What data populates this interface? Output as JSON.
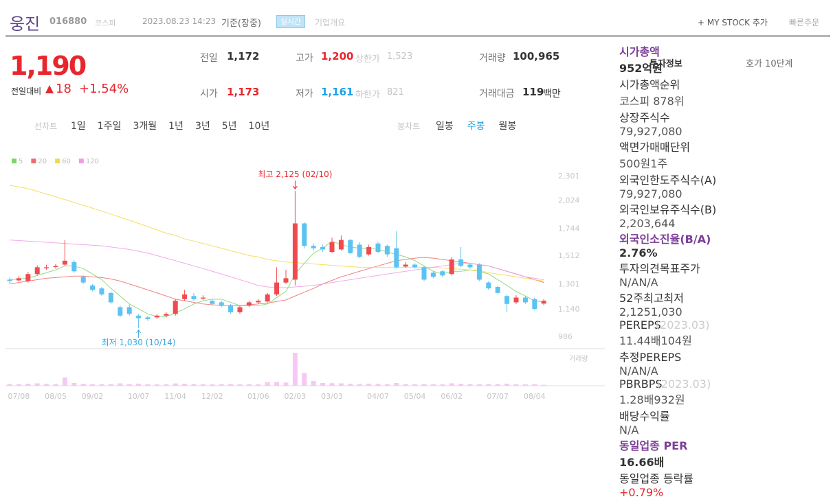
{
  "header": {
    "name": "웅진",
    "code": "016880",
    "market": "코스피",
    "datetime": "2023.08.23 14:23",
    "basis": "기준(장중)",
    "badge": "실시간",
    "company": "기업개요",
    "mystock": "+ MY STOCK 추가",
    "order": "빠른주문"
  },
  "quote": {
    "price": "1,190",
    "change_label": "전일대비",
    "change": "18",
    "change_pct": "+1.54%",
    "prev_label": "전일",
    "prev": "1,172",
    "high_label": "고가",
    "high": "1,200",
    "upper_label": "상한가",
    "upper": "1,523",
    "volume_label": "거래량",
    "volume": "100,965",
    "open_label": "시가",
    "open": "1,173",
    "low_label": "저가",
    "low": "1,161",
    "lower_label": "하한가",
    "lower": "821",
    "amount_label": "거래대금",
    "amount": "119",
    "amount_unit": "백만"
  },
  "periods": {
    "line_label": "선차트",
    "line": [
      "1일",
      "1주일",
      "3개월",
      "1년",
      "3년",
      "5년",
      "10년"
    ],
    "candle_label": "봉차트",
    "candle": [
      "일봉",
      "주봉",
      "월봉"
    ],
    "active": "주봉"
  },
  "chart_data": {
    "type": "candlestick",
    "log": true,
    "grid": false,
    "ylim": [
      951,
      2440
    ],
    "yticks": [
      {
        "value": 2301,
        "label": "2,301"
      },
      {
        "value": 2024,
        "label": "2,024"
      },
      {
        "value": 1744,
        "label": "1,744"
      },
      {
        "value": 1512,
        "label": "1,512"
      },
      {
        "value": 1301,
        "label": "1,301"
      },
      {
        "value": 1140,
        "label": "1,140"
      },
      986
    ],
    "up_color": "#f04a4f",
    "down_color": "#5bc3f2",
    "volume_color": "#f6c8f4",
    "volume_label": "거래량",
    "categories": [
      null,
      "07/08",
      null,
      null,
      null,
      "08/05",
      null,
      null,
      null,
      "09/02",
      null,
      null,
      null,
      null,
      "10/07",
      null,
      null,
      null,
      "11/04",
      null,
      null,
      null,
      "12/02",
      null,
      null,
      null,
      null,
      "01/06",
      null,
      null,
      null,
      "02/03",
      null,
      null,
      null,
      "03/03",
      null,
      null,
      null,
      null,
      "04/07",
      null,
      null,
      null,
      "05/04",
      null,
      null,
      null,
      "06/02",
      null,
      null,
      null,
      null,
      "07/07",
      null,
      null,
      null,
      "08/04",
      null
    ],
    "open": [
      1330,
      1325,
      1320,
      1370,
      1415,
      1425,
      1440,
      1460,
      1350,
      1290,
      1270,
      1240,
      1150,
      1150,
      1100,
      1090,
      1090,
      1100,
      1110,
      1200,
      1220,
      1205,
      1190,
      1180,
      1160,
      1120,
      1160,
      1180,
      1185,
      1230,
      1310,
      1330,
      1790,
      1590,
      1580,
      1540,
      1560,
      1640,
      1600,
      1520,
      1610,
      1590,
      1570,
      1425,
      1440,
      1420,
      1380,
      1390,
      1370,
      1480,
      1440,
      1440,
      1310,
      1280,
      1220,
      1180,
      1210,
      1200,
      1172
    ],
    "high": [
      1345,
      1355,
      1385,
      1435,
      1440,
      1445,
      1640,
      1475,
      1360,
      1300,
      1280,
      1250,
      1160,
      1165,
      1110,
      1100,
      1110,
      1120,
      1200,
      1260,
      1240,
      1225,
      1200,
      1190,
      1170,
      1160,
      1190,
      1200,
      1240,
      1420,
      1400,
      2125,
      1800,
      1610,
      1600,
      1660,
      1680,
      1650,
      1620,
      1600,
      1625,
      1600,
      1720,
      1460,
      1450,
      1430,
      1390,
      1400,
      1500,
      1580,
      1450,
      1450,
      1320,
      1290,
      1230,
      1225,
      1220,
      1210,
      1200
    ],
    "low": [
      1305,
      1315,
      1310,
      1360,
      1400,
      1410,
      1430,
      1380,
      1300,
      1250,
      1220,
      1170,
      1090,
      1100,
      1030,
      1070,
      1080,
      1090,
      1100,
      1190,
      1190,
      1195,
      1160,
      1150,
      1110,
      1110,
      1150,
      1170,
      1180,
      1220,
      1300,
      1290,
      1570,
      1550,
      1540,
      1530,
      1550,
      1520,
      1490,
      1510,
      1530,
      1500,
      1410,
      1415,
      1410,
      1320,
      1340,
      1350,
      1360,
      1420,
      1410,
      1320,
      1260,
      1230,
      1120,
      1170,
      1170,
      1130,
      1161
    ],
    "close": [
      1320,
      1340,
      1370,
      1420,
      1420,
      1430,
      1470,
      1390,
      1310,
      1260,
      1230,
      1180,
      1100,
      1110,
      1085,
      1080,
      1100,
      1110,
      1190,
      1230,
      1200,
      1210,
      1170,
      1160,
      1120,
      1150,
      1180,
      1190,
      1230,
      1310,
      1340,
      1790,
      1590,
      1570,
      1560,
      1620,
      1640,
      1530,
      1500,
      1580,
      1540,
      1520,
      1420,
      1440,
      1420,
      1330,
      1350,
      1360,
      1480,
      1430,
      1420,
      1330,
      1270,
      1240,
      1170,
      1210,
      1180,
      1140,
      1190
    ],
    "volume": [
      200000,
      180000,
      220000,
      260000,
      210000,
      190000,
      900000,
      300000,
      220000,
      180000,
      170000,
      200000,
      260000,
      190000,
      230000,
      170000,
      150000,
      160000,
      250000,
      220000,
      180000,
      160000,
      150000,
      170000,
      200000,
      160000,
      170000,
      150000,
      380000,
      420000,
      350000,
      3600000,
      1400000,
      520000,
      300000,
      280000,
      260000,
      220000,
      200000,
      230000,
      210000,
      190000,
      300000,
      180000,
      170000,
      200000,
      160000,
      150000,
      260000,
      220000,
      180000,
      170000,
      200000,
      190000,
      230000,
      160000,
      150000,
      170000,
      100965
    ],
    "series": [
      {
        "name": "5",
        "color": "#7ed36a",
        "values": [
          1330,
          1335,
          1340,
          1360,
          1380,
          1400,
          1430,
          1430,
          1410,
          1370,
          1330,
          1270,
          1220,
          1170,
          1140,
          1110,
          1095,
          1095,
          1115,
          1140,
          1170,
          1190,
          1200,
          1200,
          1180,
          1160,
          1160,
          1160,
          1170,
          1210,
          1250,
          1370,
          1450,
          1530,
          1570,
          1630,
          1600,
          1580,
          1570,
          1570,
          1560,
          1540,
          1520,
          1500,
          1470,
          1430,
          1390,
          1370,
          1390,
          1390,
          1400,
          1390,
          1370,
          1330,
          1290,
          1250,
          1220,
          1190,
          1180
        ]
      },
      {
        "name": "20",
        "color": "#f06b6b",
        "values": [
          1300,
          1310,
          1320,
          1330,
          1340,
          1345,
          1350,
          1355,
          1355,
          1350,
          1345,
          1335,
          1320,
          1300,
          1280,
          1260,
          1240,
          1220,
          1200,
          1190,
          1180,
          1170,
          1165,
          1160,
          1160,
          1160,
          1165,
          1170,
          1175,
          1185,
          1195,
          1220,
          1245,
          1270,
          1300,
          1325,
          1350,
          1370,
          1390,
          1410,
          1430,
          1450,
          1470,
          1480,
          1490,
          1495,
          1490,
          1480,
          1470,
          1460,
          1450,
          1440,
          1430,
          1410,
          1390,
          1370,
          1350,
          1330,
          1310
        ]
      },
      {
        "name": "60",
        "color": "#f5d84a",
        "values": [
          2190,
          2170,
          2150,
          2120,
          2090,
          2060,
          2030,
          2000,
          1970,
          1940,
          1910,
          1880,
          1850,
          1820,
          1790,
          1760,
          1730,
          1700,
          1680,
          1650,
          1630,
          1610,
          1590,
          1570,
          1550,
          1530,
          1510,
          1500,
          1480,
          1470,
          1460,
          1455,
          1450,
          1445,
          1440,
          1435,
          1430,
          1425,
          1420,
          1420,
          1420,
          1420,
          1420,
          1420,
          1420,
          1420,
          1420,
          1415,
          1410,
          1405,
          1400,
          1395,
          1380,
          1370,
          1360,
          1350,
          1340,
          1330,
          1320
        ]
      },
      {
        "name": "120",
        "color": "#f09ae8",
        "values": [
          1640,
          1635,
          1630,
          1625,
          1620,
          1615,
          1610,
          1605,
          1600,
          1595,
          1590,
          1580,
          1570,
          1560,
          1545,
          1530,
          1510,
          1490,
          1470,
          1450,
          1430,
          1410,
          1390,
          1370,
          1350,
          1330,
          1310,
          1290,
          1280,
          1275,
          1275,
          1280,
          1285,
          1290,
          1300,
          1310,
          1320,
          1330,
          1340,
          1350,
          1360,
          1370,
          1380,
          1390,
          1400,
          1410,
          1420,
          1430,
          1440,
          1450,
          1450,
          1440,
          1430,
          1410,
          1390,
          1370,
          1350,
          1340,
          1330
        ]
      }
    ],
    "annotations": {
      "high": "최고 2,125 (02/10)",
      "low": "최저 1,030 (10/14)"
    }
  },
  "info": {
    "tabs": [
      "투자정보",
      "호가 10단계"
    ],
    "groups": [
      [
        {
          "labels": [
            "시가총액"
          ],
          "values": [
            "952억원"
          ],
          "accent": true
        },
        {
          "labels": [
            "시가총액순위"
          ],
          "values": [
            "코스피 878위"
          ]
        },
        {
          "labels": [
            "상장주식수"
          ],
          "values": [
            "79,927,080"
          ]
        },
        {
          "labels": [
            "액면가",
            "매매단위"
          ],
          "values": [
            "500원",
            "1주"
          ]
        }
      ],
      [
        {
          "labels": [
            "외국인한도주식수(A)"
          ],
          "values": [
            "79,927,080"
          ]
        },
        {
          "labels": [
            "외국인보유주식수(B)"
          ],
          "values": [
            "2,203,644"
          ]
        },
        {
          "labels": [
            "외국인소진율(B/A)"
          ],
          "values": [
            "2.76%"
          ],
          "accent": true
        }
      ],
      [
        {
          "labels": [
            "투자의견",
            "목표주가"
          ],
          "values": [
            "N/A",
            "N/A"
          ]
        },
        {
          "labels": [
            "52주최고",
            "최저"
          ],
          "values": [
            "2,125",
            "1,030"
          ]
        }
      ],
      [
        {
          "labels": [
            "PER",
            "EPS"
          ],
          "note": "(2023.03)",
          "values": [
            "11.44배",
            "104원"
          ]
        },
        {
          "labels": [
            "추정PER",
            "EPS"
          ],
          "values": [
            "N/A",
            "N/A"
          ]
        },
        {
          "labels": [
            "PBR",
            "BPS"
          ],
          "note": "(2023.03)",
          "values": [
            "1.28배",
            "932원"
          ]
        },
        {
          "labels": [
            "배당수익률"
          ],
          "values": [
            "N/A"
          ]
        }
      ],
      [
        {
          "labels": [
            "동일업종 PER"
          ],
          "values": [
            "16.66배"
          ],
          "accent": true
        },
        {
          "labels": [
            "동일업종 등락률"
          ],
          "values": [
            "+0.79%"
          ],
          "up": true
        }
      ]
    ]
  }
}
